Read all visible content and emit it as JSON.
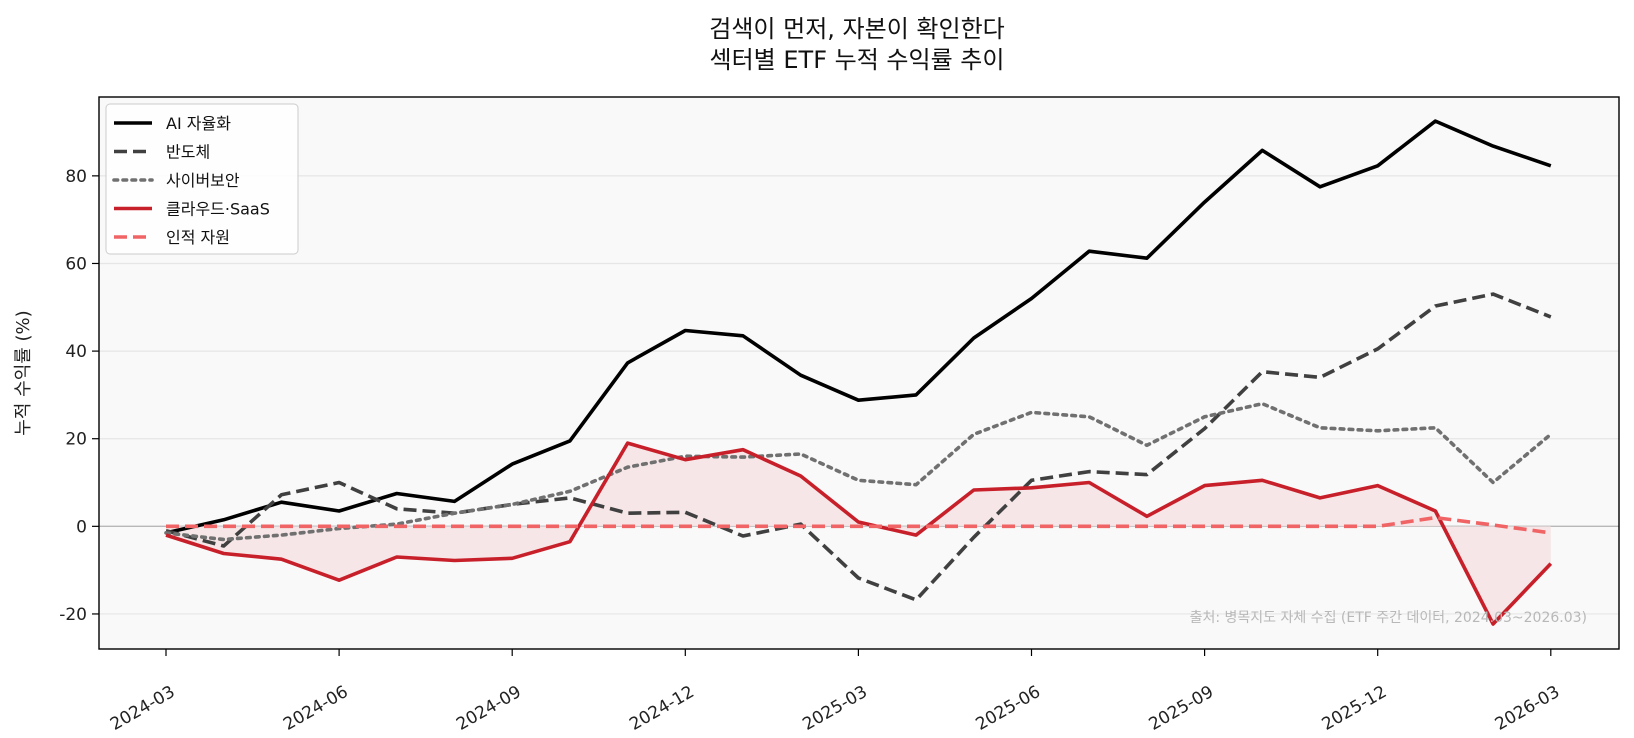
{
  "chart_data": {
    "type": "line",
    "title_lines": [
      "검색이 먼저, 자본이 확인한다",
      "섹터별 ETF 누적 수익률 추이"
    ],
    "ylabel": "누적 수익률 (%)",
    "xlabel": "",
    "ylim": [
      -28,
      98
    ],
    "yticks": [
      -20,
      0,
      20,
      40,
      60,
      80
    ],
    "ytick_labels": [
      "-20",
      "0",
      "20",
      "40",
      "60",
      "80"
    ],
    "xtick_labels": [
      "2024-03",
      "2024-06",
      "2024-09",
      "2024-12",
      "2025-03",
      "2025-06",
      "2025-09",
      "2025-12",
      "2026-03"
    ],
    "xtick_month_index": [
      0,
      3,
      6,
      9,
      12,
      15,
      18,
      21,
      24
    ],
    "x": [
      "2024-03",
      "2024-04",
      "2024-05",
      "2024-06",
      "2024-07",
      "2024-08",
      "2024-09",
      "2024-10",
      "2024-11",
      "2024-12",
      "2025-01",
      "2025-02",
      "2025-03",
      "2025-04",
      "2025-05",
      "2025-06",
      "2025-07",
      "2025-08",
      "2025-09",
      "2025-10",
      "2025-11",
      "2025-12",
      "2026-01",
      "2026-02",
      "2026-03"
    ],
    "grid": "y",
    "legend_position": "upper-left",
    "fill_between": {
      "series": "클라우드·SaaS",
      "baseline": 0,
      "color": "#f6e3e4"
    },
    "source_note": "출처: 병목지도 자체 수집 (ETF 주간 데이터, 2024.03~2026.03)",
    "series": [
      {
        "name": "AI 자율화",
        "color": "#000000",
        "style": "solid",
        "width": 3.6,
        "values": [
          -1.5,
          1.5,
          5.5,
          3.5,
          7.5,
          5.7,
          14.2,
          19.5,
          37.3,
          44.7,
          43.5,
          34.5,
          28.8,
          30.0,
          43.0,
          52.0,
          62.8,
          61.2,
          74.0,
          85.8,
          77.5,
          82.3,
          92.5,
          86.8,
          82.3
        ]
      },
      {
        "name": "반도체",
        "color": "#404040",
        "style": "dashed",
        "width": 3.6,
        "values": [
          -1.0,
          -4.5,
          7.2,
          10.0,
          4.0,
          3.0,
          5.0,
          6.5,
          3.0,
          3.2,
          -2.2,
          0.5,
          -11.8,
          -16.8,
          -2.5,
          10.5,
          12.5,
          11.8,
          22.3,
          35.3,
          34.0,
          40.5,
          50.3,
          53.0,
          47.8
        ]
      },
      {
        "name": "사이버보안",
        "color": "#707070",
        "style": "dotted",
        "width": 3.6,
        "values": [
          -1.5,
          -3.0,
          -2.0,
          -0.5,
          0.5,
          3.0,
          5.0,
          8.0,
          13.5,
          16.0,
          15.8,
          16.5,
          10.5,
          9.5,
          21.0,
          26.0,
          25.0,
          18.5,
          25.0,
          28.0,
          22.5,
          21.8,
          22.5,
          10.0,
          21.0
        ]
      },
      {
        "name": "클라우드·SaaS",
        "color": "#c8202a",
        "style": "solid",
        "width": 3.6,
        "values": [
          -2.0,
          -6.2,
          -7.5,
          -12.3,
          -7.0,
          -7.8,
          -7.3,
          -3.5,
          19.0,
          15.2,
          17.5,
          11.5,
          1.0,
          -2.0,
          8.3,
          8.8,
          10.0,
          2.3,
          9.3,
          10.5,
          6.5,
          9.3,
          3.5,
          -22.3,
          -8.5
        ]
      },
      {
        "name": "인적 자원",
        "color": "#f06466",
        "style": "dashed",
        "width": 3.6,
        "values": [
          0,
          0,
          0,
          0,
          0,
          0,
          0,
          0,
          0,
          0,
          0,
          0,
          0,
          0,
          0,
          0,
          0,
          0,
          0,
          0,
          0,
          0,
          2.0,
          0.3,
          -1.5
        ]
      }
    ]
  }
}
